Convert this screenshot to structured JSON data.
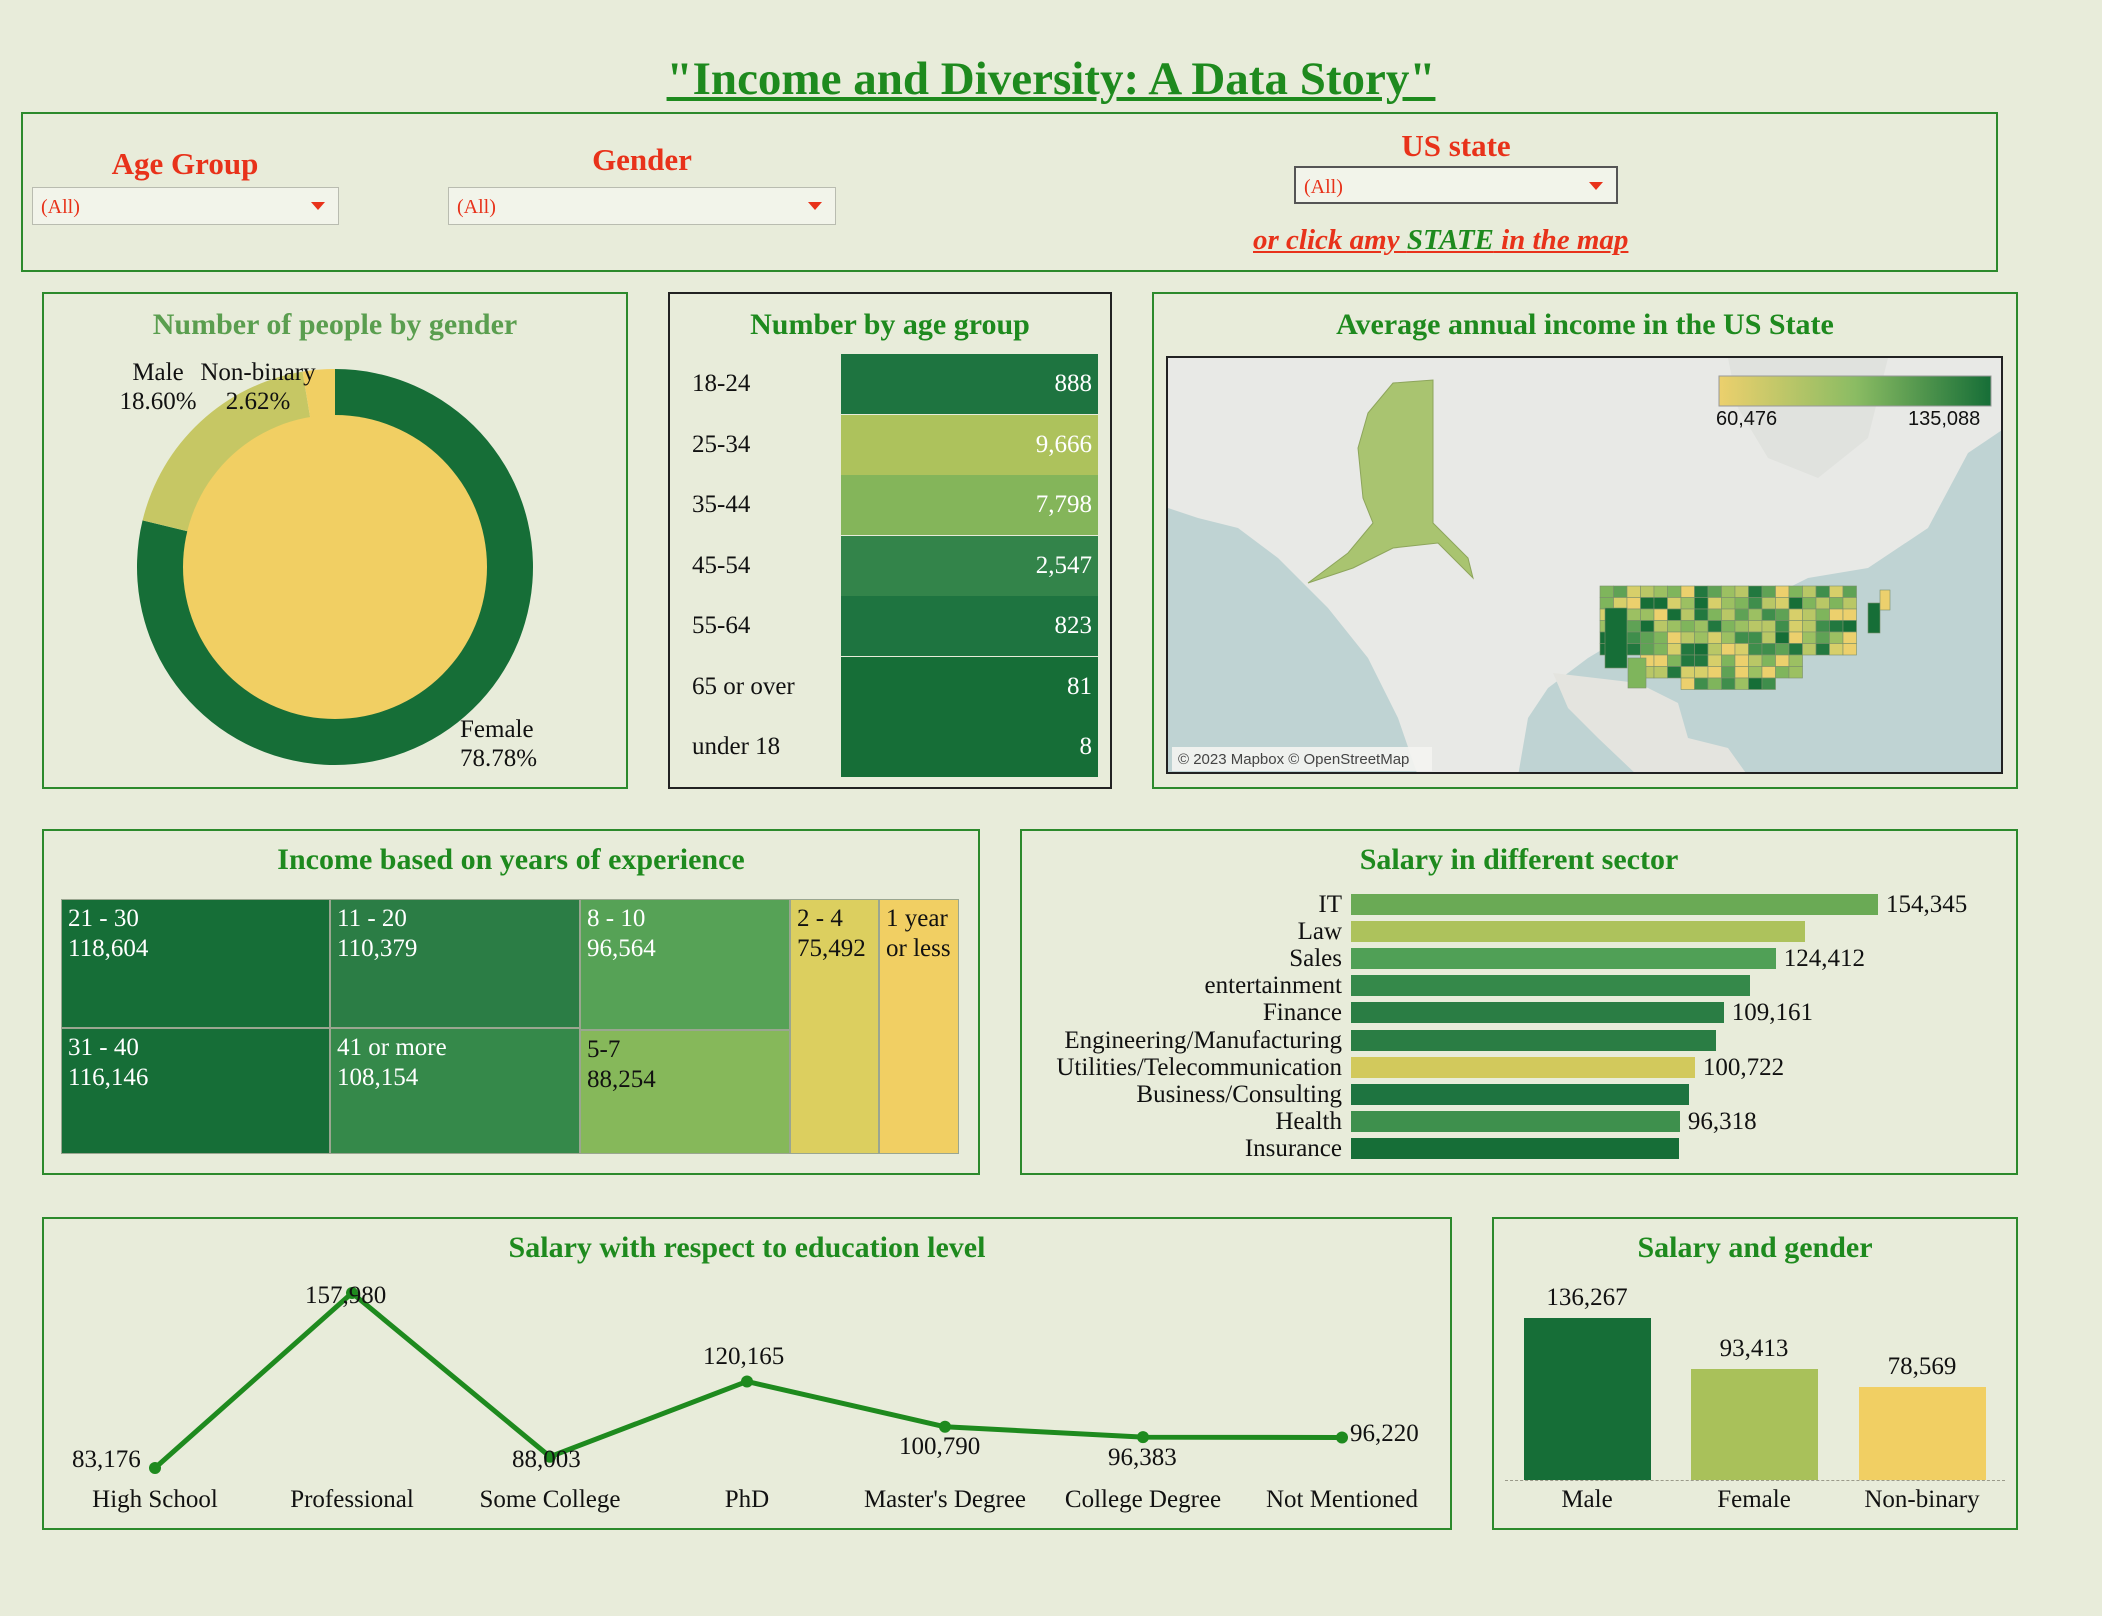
{
  "title": "\"Income and Diversity: A Data Story\"",
  "filters": {
    "age_group": {
      "label": "Age Group",
      "value": "(All)"
    },
    "gender": {
      "label": "Gender",
      "value": "(All)"
    },
    "us_state": {
      "label": "US state",
      "value": "(All)"
    },
    "hint_part1": "or click amy ",
    "hint_part2": "STATE",
    "hint_part3": " in the map"
  },
  "colors": {
    "dark_green": "#166e37",
    "mid_green": "#35894a",
    "light_green": "#a9c15a",
    "yellow": "#f1cf63",
    "title_green": "#1e8a1e",
    "accent_red": "#e8321a",
    "background": "#e8ecda"
  },
  "gender_chart": {
    "title": "Number of people by gender",
    "segments": [
      {
        "name": "Female",
        "pct": "78.78%",
        "value": 78.78,
        "color": "#166e37"
      },
      {
        "name": "Male",
        "pct": "18.60%",
        "value": 18.6,
        "color": "#c6c764"
      },
      {
        "name": "Non-binary",
        "pct": "2.62%",
        "value": 2.62,
        "color": "#f1cf63"
      }
    ]
  },
  "age_chart": {
    "title": "Number  by age group",
    "rows": [
      {
        "label": "18-24",
        "value": "888",
        "color": "#1e7440"
      },
      {
        "label": "25-34",
        "value": "9,666",
        "color": "#adc25c"
      },
      {
        "label": "35-44",
        "value": "7,798",
        "color": "#84b55a"
      },
      {
        "label": "45-54",
        "value": "2,547",
        "color": "#33844a"
      },
      {
        "label": "55-64",
        "value": "823",
        "color": "#1e7440"
      },
      {
        "label": "65 or over",
        "value": "81",
        "color": "#166e37"
      },
      {
        "label": "under 18",
        "value": "8",
        "color": "#166e37"
      }
    ]
  },
  "map": {
    "title": "Average annual income in the US State",
    "legend_min": "60,476",
    "legend_max": "135,088",
    "attribution": "© 2023 Mapbox © OpenStreetMap"
  },
  "experience": {
    "title": "Income based on  years of experience",
    "cells": [
      {
        "label": "21 - 30",
        "value": "118,604"
      },
      {
        "label": "11 - 20",
        "value": "110,379"
      },
      {
        "label": "8 - 10",
        "value": "96,564"
      },
      {
        "label": "2 - 4",
        "value": "75,492"
      },
      {
        "label": "1 year or less",
        "value": ""
      },
      {
        "label": "31 - 40",
        "value": "116,146"
      },
      {
        "label": "41 or more",
        "value": "108,154"
      },
      {
        "label": "5-7",
        "value": "88,254"
      }
    ]
  },
  "chart_data": [
    {
      "type": "bar",
      "title": "Salary in different sector",
      "orientation": "horizontal",
      "categories": [
        "IT",
        "Law",
        "Sales",
        "entertainment",
        "Finance",
        "Engineering/Manufacturing",
        "Utilities/Telecommunication",
        "Business/Consulting",
        "Health",
        "Insurance"
      ],
      "values": [
        154345,
        133000,
        124412,
        117000,
        109161,
        107000,
        100722,
        99000,
        96318,
        96000
      ],
      "labels": [
        "154,345",
        "",
        "124,412",
        "",
        "109,161",
        "",
        "100,722",
        "",
        "96,318",
        ""
      ],
      "colors": [
        "#6aaa55",
        "#adc25c",
        "#50a056",
        "#35894a",
        "#2a7d44",
        "#2a7d44",
        "#d2c95c",
        "#1e7440",
        "#3e904d",
        "#166e37"
      ],
      "xlim": [
        0,
        154345
      ]
    },
    {
      "type": "line",
      "title": "Salary with respect to education level",
      "categories": [
        "High School",
        "Professional",
        "Some College",
        "PhD",
        "Master's Degree",
        "College Degree",
        "Not Mentioned"
      ],
      "values": [
        83176,
        157980,
        88003,
        120165,
        100790,
        96383,
        96220
      ],
      "labels": [
        "83,176",
        "157,980",
        "88,003",
        "120,165",
        "100,790",
        "96,383",
        "96,220"
      ],
      "ylim": [
        83176,
        157980
      ],
      "color": "#1e8a1e"
    },
    {
      "type": "bar",
      "title": "Salary and gender",
      "categories": [
        "Male",
        "Female",
        "Non-binary"
      ],
      "values": [
        136267,
        93413,
        78569
      ],
      "labels": [
        "136,267",
        "93,413",
        "78,569"
      ],
      "colors": [
        "#166e37",
        "#a9c15a",
        "#f1cf63"
      ],
      "ylim": [
        0,
        136267
      ]
    }
  ]
}
